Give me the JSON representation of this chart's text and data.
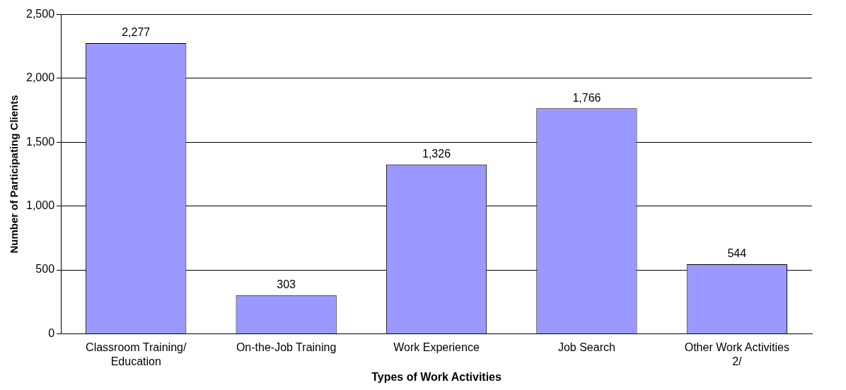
{
  "chart_data": {
    "type": "bar",
    "xlabel": "Types of Work Activities",
    "ylabel": "Number of Participating Clients",
    "categories": [
      "Classroom Training/\nEducation",
      "On-the-Job Training",
      "Work Experience",
      "Job Search",
      "Other Work Activities\n2/"
    ],
    "values": [
      2277,
      303,
      1326,
      1766,
      544
    ],
    "color": "#9999ff",
    "value_labels": [
      "2,277",
      "303",
      "1,326",
      "1,766",
      "544"
    ],
    "ylim": [
      0,
      2500
    ],
    "yticks": [
      0,
      500,
      {
        "value": 1000,
        "label": "1,000"
      },
      {
        "value": 1500,
        "label": "1,500"
      },
      {
        "value": 2000,
        "label": "2,000"
      },
      {
        "value": 2500,
        "label": "2,500"
      }
    ],
    "grid": "y",
    "legend": false
  }
}
